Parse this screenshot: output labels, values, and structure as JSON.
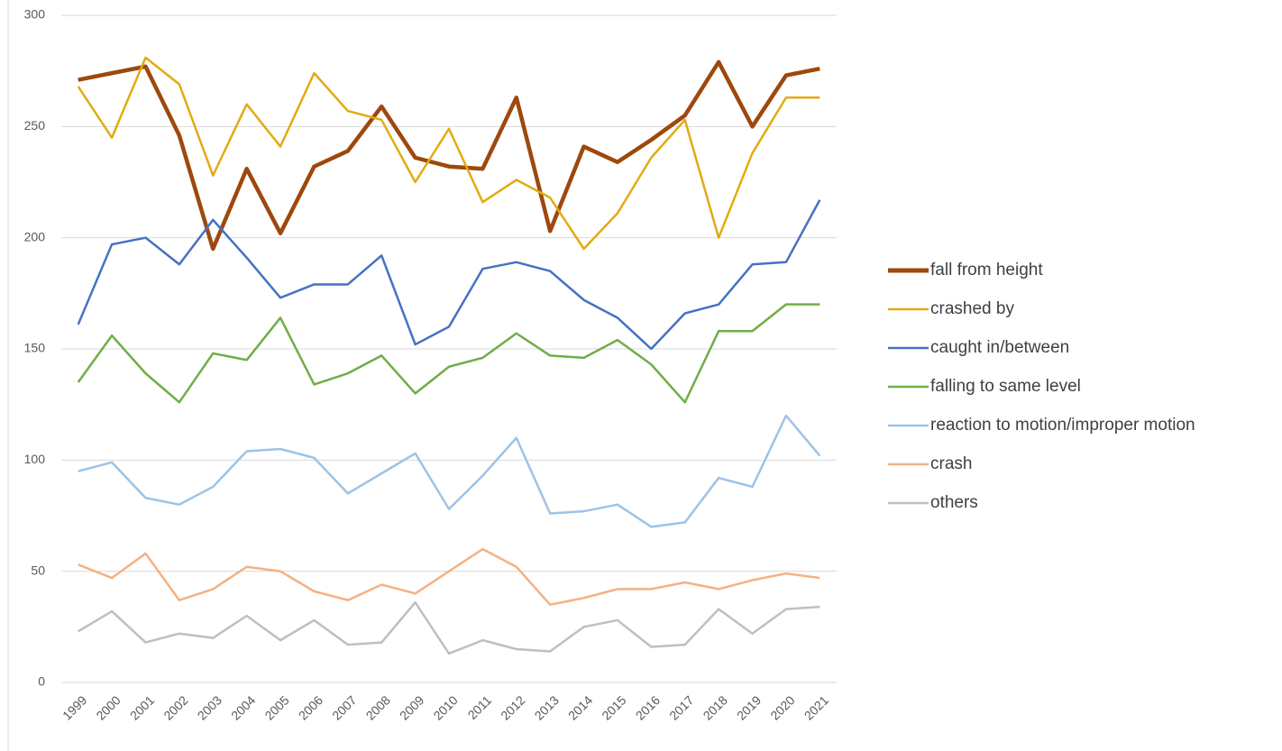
{
  "chart_data": {
    "type": "line",
    "categories": [
      "1999",
      "2000",
      "2001",
      "2002",
      "2003",
      "2004",
      "2005",
      "2006",
      "2007",
      "2008",
      "2009",
      "2010",
      "2011",
      "2012",
      "2013",
      "2014",
      "2015",
      "2016",
      "2017",
      "2018",
      "2019",
      "2020",
      "2021"
    ],
    "series": [
      {
        "name": "fall from height",
        "color": "#9e480e",
        "values": [
          271,
          274,
          277,
          246,
          195,
          231,
          202,
          232,
          239,
          259,
          236,
          232,
          231,
          263,
          203,
          241,
          234,
          244,
          255,
          279,
          250,
          273,
          276
        ]
      },
      {
        "name": "crashed by",
        "color": "#e3aa12",
        "values": [
          268,
          245,
          281,
          269,
          228,
          260,
          241,
          274,
          257,
          253,
          225,
          249,
          216,
          226,
          218,
          195,
          211,
          236,
          253,
          200,
          238,
          263,
          263
        ]
      },
      {
        "name": "caught in/between",
        "color": "#4472c4",
        "values": [
          161,
          197,
          200,
          188,
          208,
          191,
          173,
          179,
          179,
          192,
          152,
          160,
          186,
          189,
          185,
          172,
          164,
          150,
          166,
          170,
          188,
          189,
          217
        ]
      },
      {
        "name": "falling to same level",
        "color": "#70ad47",
        "values": [
          135,
          156,
          139,
          126,
          148,
          145,
          164,
          134,
          139,
          147,
          130,
          142,
          146,
          157,
          147,
          146,
          154,
          143,
          126,
          158,
          158,
          170,
          170
        ]
      },
      {
        "name": "reaction to motion/improper motion",
        "color": "#9dc3e6",
        "values": [
          95,
          99,
          83,
          80,
          88,
          104,
          105,
          101,
          85,
          94,
          103,
          78,
          93,
          110,
          76,
          77,
          80,
          70,
          72,
          92,
          88,
          120,
          102
        ]
      },
      {
        "name": "crash",
        "color": "#f4b183",
        "values": [
          53,
          47,
          58,
          37,
          42,
          52,
          50,
          41,
          37,
          44,
          40,
          50,
          60,
          52,
          35,
          38,
          42,
          42,
          45,
          42,
          46,
          49,
          47
        ]
      },
      {
        "name": "others",
        "color": "#bfbfbf",
        "values": [
          23,
          32,
          18,
          22,
          20,
          30,
          19,
          28,
          17,
          18,
          36,
          13,
          19,
          15,
          14,
          25,
          28,
          16,
          17,
          33,
          22,
          33,
          34
        ]
      }
    ],
    "ylim": [
      0,
      300
    ],
    "yticks": [
      0,
      50,
      100,
      150,
      200,
      250,
      300
    ],
    "grid": true,
    "legend": "right"
  }
}
